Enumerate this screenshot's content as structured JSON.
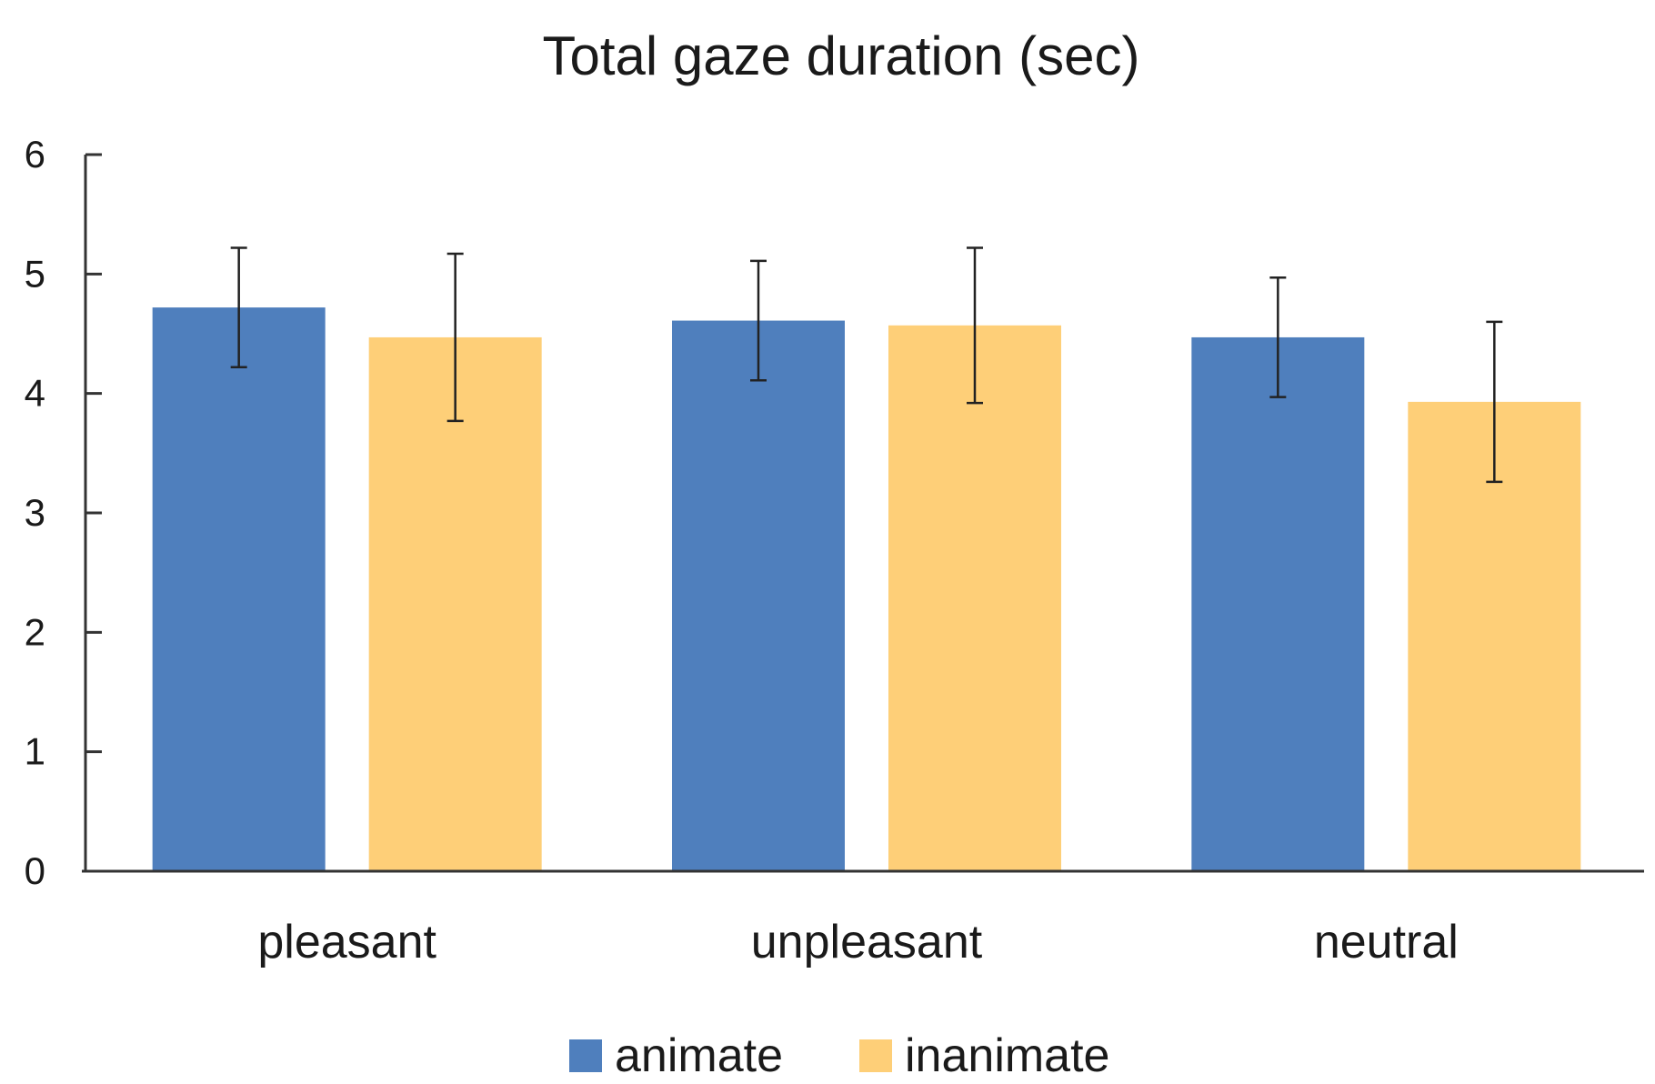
{
  "chart_data": {
    "type": "bar",
    "title": "Total gaze duration (sec)",
    "xlabel": "",
    "ylabel": "",
    "ylim": [
      0,
      6
    ],
    "yticks": [
      0,
      1,
      2,
      3,
      4,
      5,
      6
    ],
    "categories": [
      "pleasant",
      "unpleasant",
      "neutral"
    ],
    "series": [
      {
        "name": "animate",
        "color": "#4f7fbd",
        "values": [
          4.72,
          4.61,
          4.47
        ],
        "error": [
          0.5,
          0.5,
          0.5
        ]
      },
      {
        "name": "inanimate",
        "color": "#fecf78",
        "values": [
          4.47,
          4.57,
          3.93
        ],
        "error": [
          0.7,
          0.65,
          0.67
        ]
      }
    ],
    "legend_position": "bottom",
    "grid": false
  }
}
